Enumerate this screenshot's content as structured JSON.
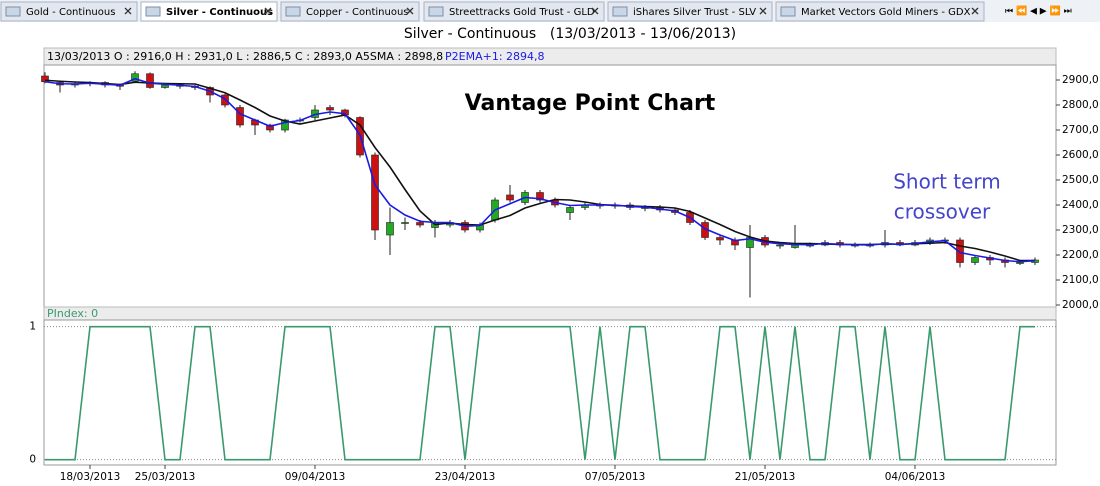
{
  "tabs": [
    "Gold - Continuous",
    "Silver - Continuous",
    "Copper - Continuous",
    "Streettracks Gold Trust - GLD",
    "iShares Silver Trust - SLV",
    "Market Vectors Gold Miners - GDX"
  ],
  "chart_data": [
    {
      "type": "candlestick",
      "title": "Silver -  Continuous",
      "subtitle": "(13/03/2013 - 13/06/2013)",
      "info": "13/03/2013 O : 2916,0 H : 2931,0 L : 2886,5 C : 2893,0 A5SMA : 2898,8",
      "info2": "P2EMA+1: 2894,8",
      "annotations": [
        "Vantage Point Chart",
        "Short term",
        "crossover"
      ],
      "categories": [
        null,
        null,
        null,
        "18/03/2013",
        null,
        null,
        null,
        null,
        "25/03/2013",
        null,
        null,
        null,
        null,
        null,
        null,
        null,
        null,
        null,
        "09/04/2013",
        null,
        null,
        null,
        null,
        null,
        null,
        null,
        null,
        null,
        "23/04/2013",
        null,
        null,
        null,
        null,
        null,
        null,
        null,
        null,
        null,
        "07/05/2013",
        null,
        null,
        null,
        null,
        null,
        null,
        null,
        null,
        null,
        "21/05/2013",
        null,
        null,
        null,
        null,
        null,
        null,
        null,
        null,
        null,
        "04/06/2013",
        null,
        null,
        null,
        null,
        null,
        null,
        null,
        null
      ],
      "open": [
        2916,
        2890,
        2880,
        2885,
        2890,
        2880,
        2895,
        2925,
        2870,
        2880,
        2875,
        2870,
        2840,
        2790,
        2740,
        2720,
        2700,
        2740,
        2750,
        2790,
        2780,
        2750,
        2600,
        2280,
        2330,
        2330,
        2310,
        2320,
        2330,
        2300,
        2340,
        2440,
        2410,
        2450,
        2420,
        2370,
        2390,
        2400,
        2400,
        2400,
        2390,
        2390,
        2380,
        2370,
        2330,
        2270,
        2260,
        2230,
        2270,
        2240,
        2230,
        2240,
        2240,
        2250,
        2240,
        2240,
        2240,
        2250,
        2240,
        2250,
        2260,
        2260,
        2170,
        2190,
        2180,
        2170,
        2170
      ],
      "high": [
        2931,
        2895,
        2890,
        2895,
        2895,
        2885,
        2935,
        2930,
        2885,
        2885,
        2880,
        2875,
        2845,
        2800,
        2745,
        2725,
        2745,
        2750,
        2800,
        2800,
        2785,
        2755,
        2610,
        2390,
        2350,
        2340,
        2340,
        2340,
        2340,
        2330,
        2430,
        2480,
        2460,
        2460,
        2430,
        2400,
        2410,
        2410,
        2410,
        2410,
        2400,
        2400,
        2390,
        2380,
        2340,
        2280,
        2270,
        2320,
        2280,
        2250,
        2320,
        2250,
        2260,
        2260,
        2250,
        2250,
        2300,
        2260,
        2260,
        2270,
        2270,
        2270,
        2200,
        2200,
        2190,
        2180,
        2190
      ],
      "low": [
        2886.5,
        2850,
        2870,
        2875,
        2870,
        2860,
        2890,
        2865,
        2865,
        2865,
        2860,
        2810,
        2790,
        2710,
        2680,
        2690,
        2690,
        2730,
        2740,
        2760,
        2750,
        2590,
        2260,
        2200,
        2300,
        2310,
        2270,
        2310,
        2290,
        2290,
        2330,
        2410,
        2400,
        2410,
        2390,
        2340,
        2380,
        2385,
        2385,
        2380,
        2375,
        2370,
        2360,
        2320,
        2260,
        2240,
        2220,
        2030,
        2230,
        2225,
        2225,
        2230,
        2235,
        2230,
        2230,
        2230,
        2230,
        2235,
        2235,
        2240,
        2245,
        2150,
        2160,
        2160,
        2150,
        2160,
        2160
      ],
      "close": [
        2893,
        2880,
        2885,
        2890,
        2880,
        2875,
        2925,
        2870,
        2880,
        2875,
        2870,
        2840,
        2800,
        2720,
        2720,
        2700,
        2740,
        2740,
        2780,
        2780,
        2760,
        2600,
        2300,
        2330,
        2330,
        2320,
        2330,
        2330,
        2300,
        2320,
        2420,
        2420,
        2450,
        2420,
        2400,
        2390,
        2400,
        2400,
        2400,
        2390,
        2390,
        2380,
        2370,
        2330,
        2270,
        2260,
        2240,
        2270,
        2240,
        2240,
        2240,
        2240,
        2250,
        2240,
        2240,
        2240,
        2250,
        2240,
        2250,
        2260,
        2260,
        2170,
        2190,
        2180,
        2170,
        2170,
        2180
      ],
      "up_color": "#22aa22",
      "down_color": "#cc1111",
      "lines": [
        {
          "color": "#111111",
          "values": [
            2899,
            2895,
            2892,
            2890,
            2886,
            2882,
            2891,
            2888,
            2886,
            2885,
            2884,
            2867,
            2849,
            2820,
            2790,
            2756,
            2736,
            2724,
            2736,
            2748,
            2760,
            2720,
            2630,
            2552,
            2462,
            2376,
            2322,
            2328,
            2322,
            2320,
            2340,
            2358,
            2388,
            2406,
            2422,
            2420,
            2412,
            2402,
            2398,
            2396,
            2394,
            2392,
            2388,
            2374,
            2348,
            2322,
            2294,
            2272,
            2256,
            2250,
            2246,
            2246,
            2244,
            2242,
            2242,
            2242,
            2244,
            2243,
            2245,
            2247,
            2250,
            2236,
            2226,
            2212,
            2196,
            2178,
            2178
          ]
        },
        {
          "color": "#1a1ae6",
          "values": [
            2893,
            2885,
            2884,
            2887,
            2883,
            2879,
            2905,
            2887,
            2883,
            2879,
            2874,
            2855,
            2825,
            2765,
            2740,
            2715,
            2730,
            2738,
            2762,
            2772,
            2765,
            2680,
            2480,
            2400,
            2360,
            2335,
            2330,
            2330,
            2315,
            2318,
            2380,
            2405,
            2430,
            2425,
            2410,
            2398,
            2400,
            2400,
            2400,
            2394,
            2391,
            2384,
            2376,
            2350,
            2305,
            2280,
            2258,
            2265,
            2251,
            2245,
            2242,
            2241,
            2246,
            2243,
            2241,
            2240,
            2245,
            2242,
            2246,
            2253,
            2257,
            2210,
            2198,
            2188,
            2178,
            2173,
            2177
          ]
        }
      ],
      "ylim": [
        1960,
        2960
      ],
      "yticks": [
        {
          "value": 2000,
          "label": "2000,0"
        },
        {
          "value": 2100,
          "label": "2100,0"
        },
        {
          "value": 2200,
          "label": "2200,0"
        },
        {
          "value": 2300,
          "label": "2300,0"
        },
        {
          "value": 2400,
          "label": "2400,0"
        },
        {
          "value": 2500,
          "label": "2500,0"
        },
        {
          "value": 2600,
          "label": "2600,0"
        },
        {
          "value": 2700,
          "label": "2700,0"
        },
        {
          "value": 2800,
          "label": "2800,0"
        },
        {
          "value": 2900,
          "label": "2900,0"
        }
      ]
    },
    {
      "type": "line",
      "label": "PIndex: 0",
      "color": "#3a9a6e",
      "values": [
        0,
        0,
        0,
        1,
        1,
        1,
        1,
        1,
        0,
        0,
        1,
        1,
        0,
        0,
        0,
        0,
        1,
        1,
        1,
        1,
        0,
        0,
        0,
        0,
        0,
        0,
        1,
        1,
        0,
        1,
        1,
        1,
        1,
        1,
        1,
        1,
        0,
        1,
        0,
        1,
        1,
        0,
        0,
        0,
        0,
        1,
        1,
        0,
        1,
        0,
        1,
        0,
        0,
        1,
        1,
        0,
        1,
        0,
        0,
        1,
        0,
        0,
        0,
        0,
        0,
        1,
        1
      ],
      "ylim": [
        -0.04,
        1.05
      ],
      "yticks": [
        0,
        1
      ]
    }
  ]
}
